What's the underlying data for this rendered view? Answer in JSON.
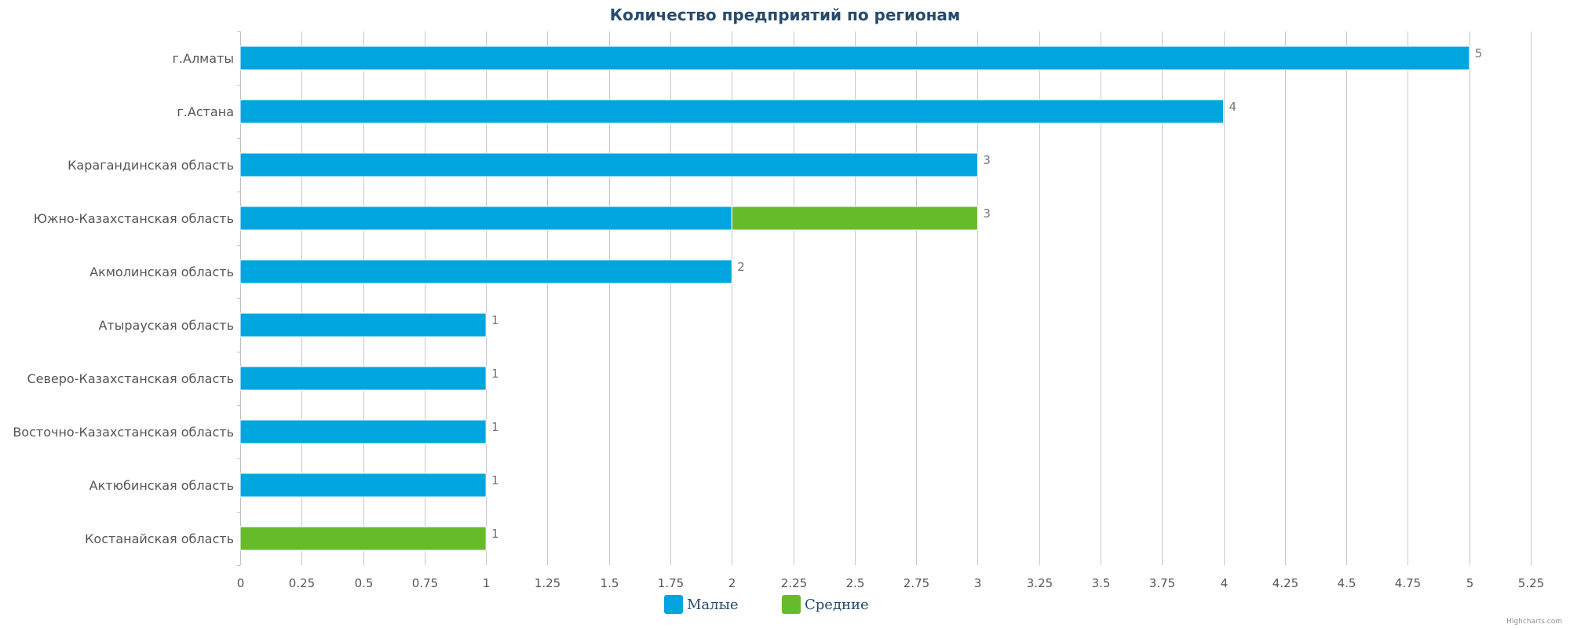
{
  "chart_data": {
    "type": "bar",
    "orientation": "horizontal",
    "stacked": true,
    "title": "Количество предприятий по регионам",
    "categories": [
      "г.Алматы",
      "г.Астана",
      "Карагандинская область",
      "Южно-Казахстанская область",
      "Акмолинская область",
      "Атырауская область",
      "Северо-Казахстанская область",
      "Восточно-Казахстанская область",
      "Актюбинская область",
      "Костанайская область"
    ],
    "series": [
      {
        "name": "Малые",
        "color": "#00a5e0",
        "values": [
          5,
          4,
          3,
          2,
          2,
          1,
          1,
          1,
          1,
          0
        ]
      },
      {
        "name": "Средние",
        "color": "#66bb2a",
        "values": [
          0,
          0,
          0,
          1,
          0,
          0,
          0,
          0,
          0,
          1
        ]
      }
    ],
    "totals": [
      5,
      4,
      3,
      3,
      2,
      1,
      1,
      1,
      1,
      1
    ],
    "xlim": [
      0,
      5.25
    ],
    "ticks": [
      "0",
      "0.25",
      "0.5",
      "0.75",
      "1",
      "1.25",
      "1.5",
      "1.75",
      "2",
      "2.25",
      "2.5",
      "2.75",
      "3",
      "3.25",
      "3.5",
      "3.75",
      "4",
      "4.25",
      "4.5",
      "4.75",
      "5",
      "5.25"
    ],
    "grid": true,
    "legend_position": "bottom-center",
    "credits": "Highcharts.com"
  }
}
